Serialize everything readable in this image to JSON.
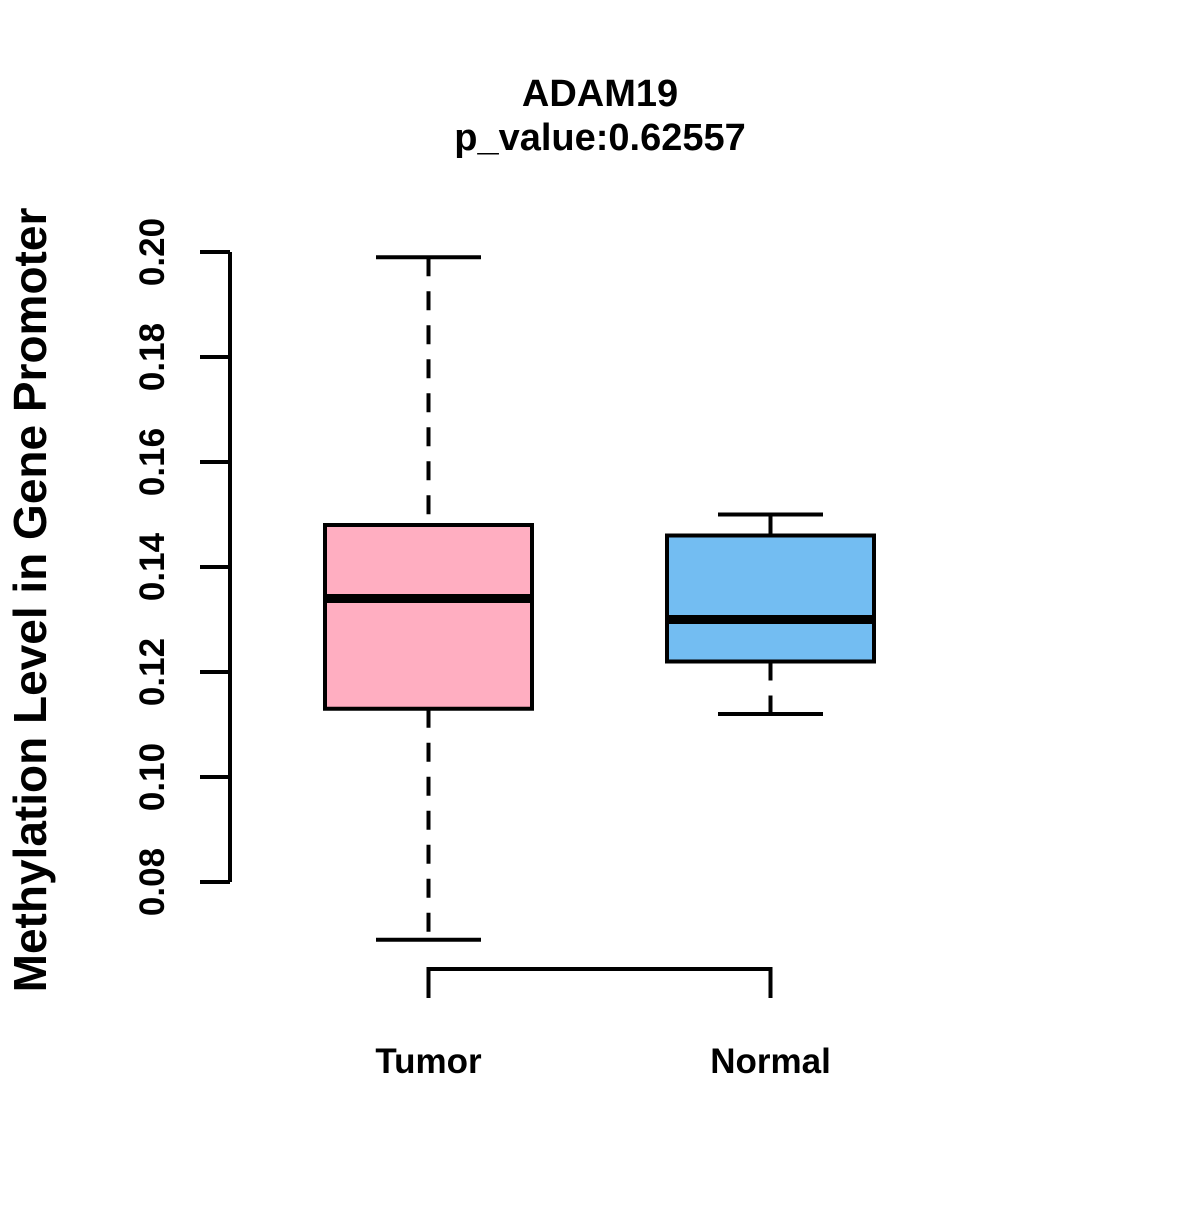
{
  "chart_data": {
    "type": "boxplot",
    "title": "ADAM19",
    "subtitle": "p_value:0.62557",
    "ylabel": "Methylation Level in Gene Promoter",
    "xlabel": "",
    "categories": [
      "Tumor",
      "Normal"
    ],
    "y_ticks": [
      0.08,
      0.1,
      0.12,
      0.14,
      0.16,
      0.18,
      0.2
    ],
    "ylim": [
      0.08,
      0.2
    ],
    "grid": false,
    "legend": "none",
    "series": [
      {
        "name": "Tumor",
        "fill_color": "#FFAEC1",
        "whisker_low": 0.069,
        "q1": 0.113,
        "median": 0.134,
        "q3": 0.148,
        "whisker_high": 0.199
      },
      {
        "name": "Normal",
        "fill_color": "#73BDF2",
        "whisker_low": 0.112,
        "q1": 0.122,
        "median": 0.13,
        "q3": 0.146,
        "whisker_high": 0.15
      }
    ],
    "colors": {
      "stroke": "#000000",
      "background": "#FFFFFF",
      "tumor_fill": "#FFAEC1",
      "normal_fill": "#73BDF2"
    }
  }
}
